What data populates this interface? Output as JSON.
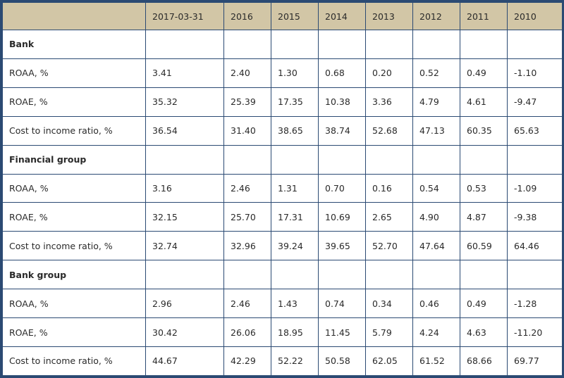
{
  "table": {
    "headers": [
      "",
      "2017-03-31",
      "2016",
      "2015",
      "2014",
      "2013",
      "2012",
      "2011",
      "2010"
    ],
    "rows": [
      {
        "type": "section",
        "cells": [
          "Bank",
          "",
          "",
          "",
          "",
          "",
          "",
          "",
          ""
        ]
      },
      {
        "type": "data",
        "cells": [
          "ROAA, %",
          "3.41",
          "2.40",
          "1.30",
          "0.68",
          "0.20",
          "0.52",
          "0.49",
          "-1.10"
        ]
      },
      {
        "type": "data",
        "cells": [
          "ROAE, %",
          "35.32",
          "25.39",
          "17.35",
          "10.38",
          "3.36",
          "4.79",
          "4.61",
          "-9.47"
        ]
      },
      {
        "type": "data",
        "cells": [
          "Cost to income ratio, %",
          "36.54",
          "31.40",
          "38.65",
          "38.74",
          "52.68",
          "47.13",
          "60.35",
          "65.63"
        ]
      },
      {
        "type": "section",
        "cells": [
          "Financial group",
          "",
          "",
          "",
          "",
          "",
          "",
          "",
          ""
        ]
      },
      {
        "type": "data",
        "cells": [
          "ROAA, %",
          "3.16",
          "2.46",
          "1.31",
          "0.70",
          "0.16",
          "0.54",
          "0.53",
          "-1.09"
        ]
      },
      {
        "type": "data",
        "cells": [
          "ROAE, %",
          "32.15",
          "25.70",
          "17.31",
          "10.69",
          "2.65",
          "4.90",
          "4.87",
          "-9.38"
        ]
      },
      {
        "type": "data",
        "cells": [
          "Cost to income ratio, %",
          "32.74",
          "32.96",
          "39.24",
          "39.65",
          "52.70",
          "47.64",
          "60.59",
          "64.46"
        ]
      },
      {
        "type": "section",
        "cells": [
          "Bank group",
          "",
          "",
          "",
          "",
          "",
          "",
          "",
          ""
        ]
      },
      {
        "type": "data",
        "cells": [
          "ROAA, %",
          "2.96",
          "2.46",
          "1.43",
          "0.74",
          "0.34",
          "0.46",
          "0.49",
          "-1.28"
        ]
      },
      {
        "type": "data",
        "cells": [
          "ROAE, %",
          "30.42",
          "26.06",
          "18.95",
          "11.45",
          "5.79",
          "4.24",
          "4.63",
          "-11.20"
        ]
      },
      {
        "type": "data",
        "cells": [
          "Cost to income ratio, %",
          "44.67",
          "42.29",
          "52.22",
          "50.58",
          "62.05",
          "61.52",
          "68.66",
          "69.77"
        ]
      }
    ]
  },
  "colors": {
    "header_bg": "#d2c6a6",
    "border": "#2b4a73",
    "cell_bg": "#ffffff"
  }
}
